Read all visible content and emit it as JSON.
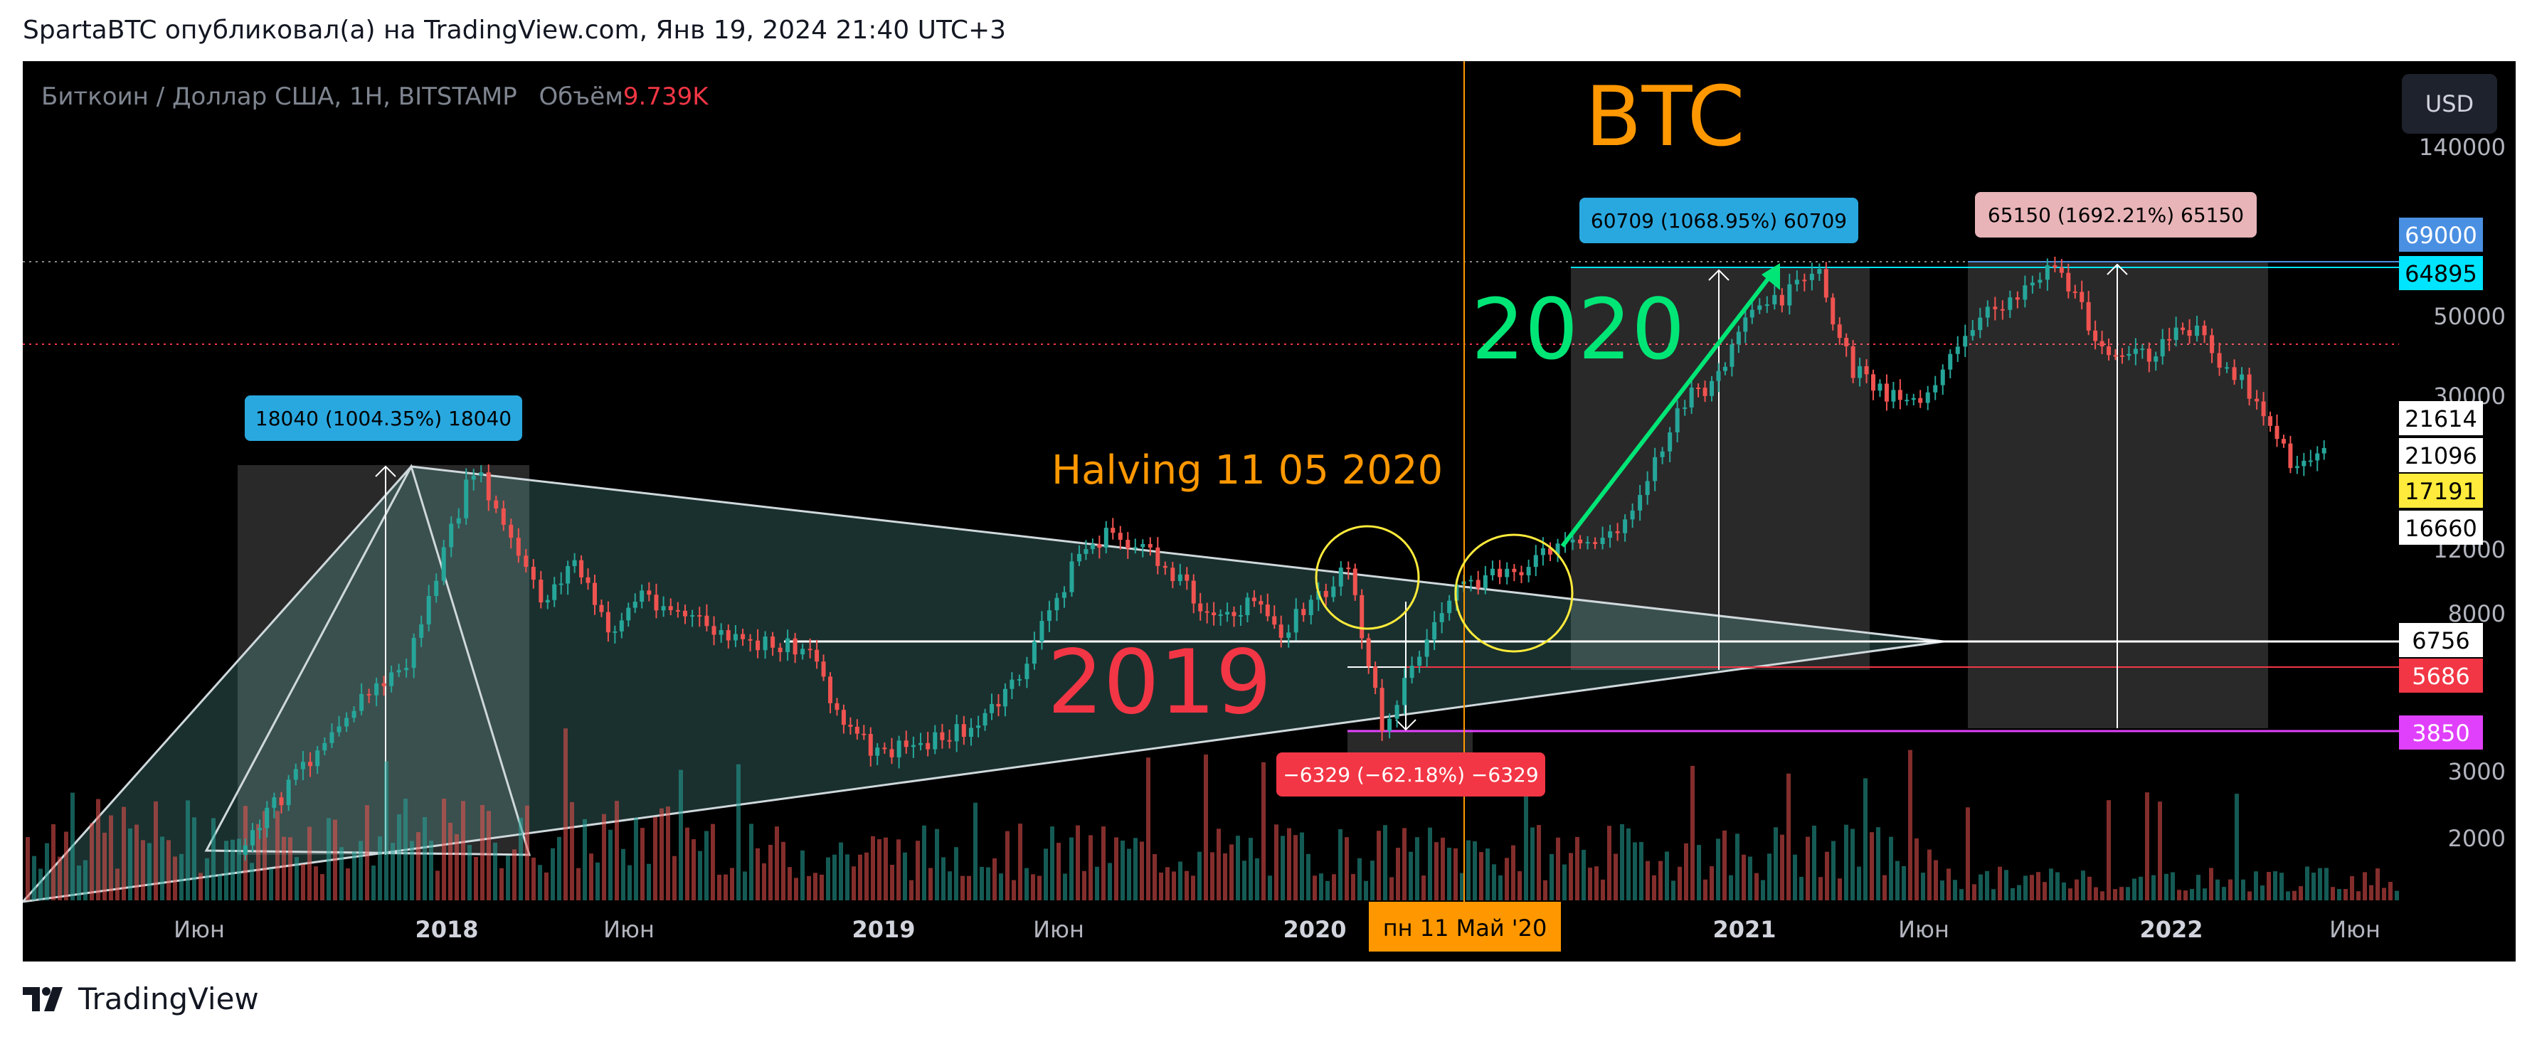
{
  "caption": "SpartaBTC опубликовал(а) на TradingView.com, Янв 19, 2024 21:40 UTC+3",
  "symbol": {
    "name": "Биткоин / Доллар США, 1Н, BITSTAMP",
    "volume_label": "Объём",
    "volume_value": "9.739K"
  },
  "currency_button": "USD",
  "brand": "TradingView",
  "icons": {
    "logo": "tradingview-logo-icon"
  },
  "colors": {
    "up": "#26a69a",
    "down": "#ef5350",
    "background": "#000000",
    "accent_orange": "#ff9800",
    "accent_green": "#00e676",
    "accent_red": "#f23645"
  },
  "chart_data": {
    "type": "candlestick",
    "title": "BTC",
    "y_scale": "log",
    "y_axis_ticks": [
      "140000",
      "50000",
      "30000",
      "12000",
      "8000",
      "3000",
      "2000"
    ],
    "x_axis_ticks": [
      "Июн",
      "2018",
      "Июн",
      "2019",
      "Июн",
      "2020",
      "2021",
      "Июн",
      "2022",
      "Июн"
    ],
    "crosshair_date_label": "пн 11 Май '20",
    "price_levels": [
      {
        "value": "69000",
        "color": "#4a90e2",
        "text_color": "#ffffff"
      },
      {
        "value": "64895",
        "color": "#00e5ff",
        "text_color": "#000000"
      },
      {
        "value": "21614",
        "color": "#ffffff",
        "text_color": "#000000"
      },
      {
        "value": "21096",
        "color": "#ffffff",
        "text_color": "#000000"
      },
      {
        "value": "17191",
        "color": "#ffeb3b",
        "text_color": "#000000"
      },
      {
        "value": "16660",
        "color": "#ffffff",
        "text_color": "#000000"
      },
      {
        "value": "6756",
        "color": "#ffffff",
        "text_color": "#000000"
      },
      {
        "value": "5686",
        "color": "#f23645",
        "text_color": "#ffffff"
      },
      {
        "value": "3850",
        "color": "#e040fb",
        "text_color": "#ffffff"
      }
    ],
    "annotations": {
      "big_title": "BTC",
      "halving": "Halving 11 05 2020",
      "label_2019": "2019",
      "label_2020": "2020",
      "measure_2017": "18040 (1004.35%) 18040",
      "measure_2021a": "60709 (1068.95%) 60709",
      "measure_2021b": "65150 (1692.21%) 65150",
      "measure_drop_2020": "−6329 (−62.18%) −6329"
    },
    "price_path": [
      {
        "date": "2017-05",
        "price": 1800
      },
      {
        "date": "2017-08",
        "price": 4200
      },
      {
        "date": "2017-10",
        "price": 5800
      },
      {
        "date": "2017-12",
        "price": 19500
      },
      {
        "date": "2018-02",
        "price": 8500
      },
      {
        "date": "2018-03",
        "price": 11000
      },
      {
        "date": "2018-04",
        "price": 7000
      },
      {
        "date": "2018-05",
        "price": 9000
      },
      {
        "date": "2018-08",
        "price": 6500
      },
      {
        "date": "2018-10",
        "price": 6500
      },
      {
        "date": "2018-11",
        "price": 4000
      },
      {
        "date": "2018-12",
        "price": 3300
      },
      {
        "date": "2019-03",
        "price": 4000
      },
      {
        "date": "2019-04",
        "price": 5000
      },
      {
        "date": "2019-06",
        "price": 11500
      },
      {
        "date": "2019-07",
        "price": 13000
      },
      {
        "date": "2019-09",
        "price": 10000
      },
      {
        "date": "2019-10",
        "price": 7500
      },
      {
        "date": "2019-11",
        "price": 8500
      },
      {
        "date": "2019-12",
        "price": 7200
      },
      {
        "date": "2020-02",
        "price": 10300
      },
      {
        "date": "2020-03",
        "price": 4000
      },
      {
        "date": "2020-05",
        "price": 8800
      },
      {
        "date": "2020-08",
        "price": 11500
      },
      {
        "date": "2020-10",
        "price": 13000
      },
      {
        "date": "2020-12",
        "price": 29000
      },
      {
        "date": "2021-01",
        "price": 34000
      },
      {
        "date": "2021-02",
        "price": 50000
      },
      {
        "date": "2021-04",
        "price": 63000
      },
      {
        "date": "2021-05",
        "price": 35000
      },
      {
        "date": "2021-06",
        "price": 31000
      },
      {
        "date": "2021-07",
        "price": 30000
      },
      {
        "date": "2021-09",
        "price": 50000
      },
      {
        "date": "2021-11",
        "price": 69000
      },
      {
        "date": "2021-12",
        "price": 47000
      },
      {
        "date": "2022-01",
        "price": 37000
      },
      {
        "date": "2022-02",
        "price": 40000
      },
      {
        "date": "2022-03",
        "price": 46000
      },
      {
        "date": "2022-05",
        "price": 30000
      },
      {
        "date": "2022-06",
        "price": 20000
      },
      {
        "date": "2022-07",
        "price": 21000
      }
    ]
  }
}
